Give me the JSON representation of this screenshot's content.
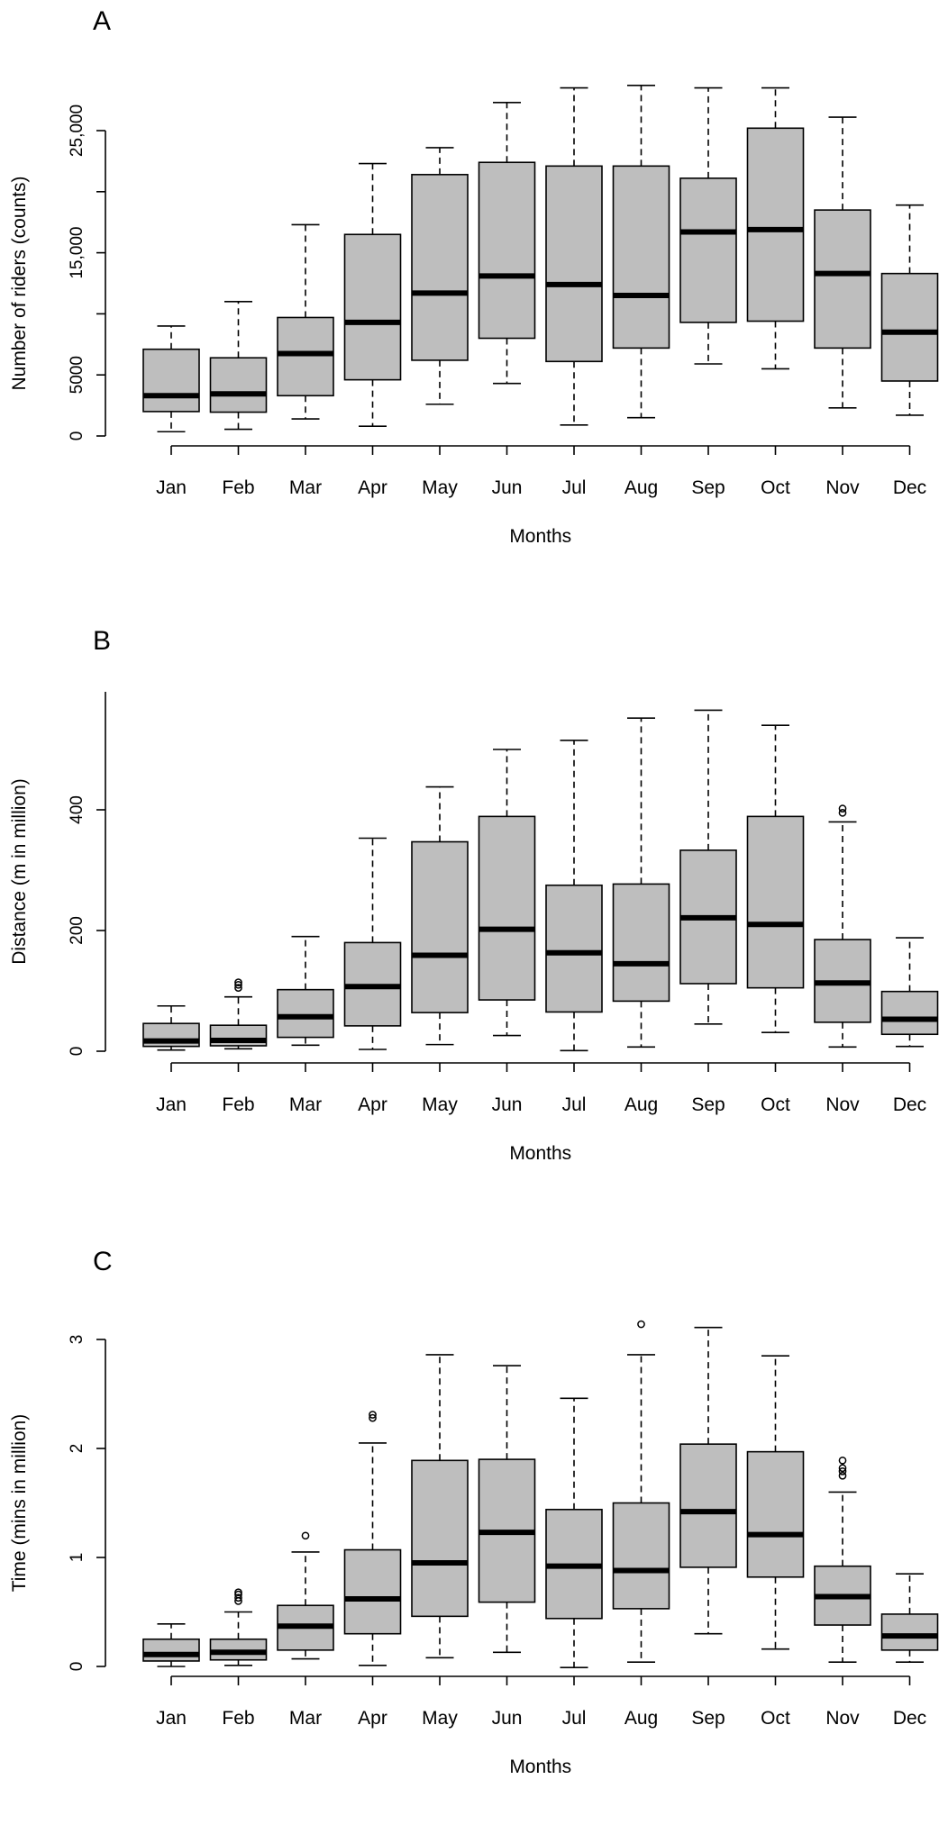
{
  "chart_data": [
    {
      "type": "boxplot",
      "panel_label": "A",
      "xlabel": "Months",
      "ylabel": "Number of riders (counts)",
      "categories": [
        "Jan",
        "Feb",
        "Mar",
        "Apr",
        "May",
        "Jun",
        "Jul",
        "Aug",
        "Sep",
        "Oct",
        "Nov",
        "Dec"
      ],
      "ylim": [
        0,
        29000
      ],
      "yticks": [
        0,
        5000,
        15000,
        25000
      ],
      "ytick_labels": [
        "0",
        "5000",
        "15,000",
        "25,000"
      ],
      "minor_yticks": [
        10000,
        20000
      ],
      "boxes": [
        {
          "min": 350,
          "q1": 2000,
          "median": 3300,
          "q3": 7100,
          "max": 9000,
          "outliers": []
        },
        {
          "min": 550,
          "q1": 1950,
          "median": 3450,
          "q3": 6400,
          "max": 11000,
          "outliers": []
        },
        {
          "min": 1400,
          "q1": 3300,
          "median": 6750,
          "q3": 9700,
          "max": 17300,
          "outliers": []
        },
        {
          "min": 800,
          "q1": 4600,
          "median": 9300,
          "q3": 16500,
          "max": 22300,
          "outliers": []
        },
        {
          "min": 2600,
          "q1": 6200,
          "median": 11700,
          "q3": 21400,
          "max": 23600,
          "outliers": []
        },
        {
          "min": 4300,
          "q1": 8000,
          "median": 13100,
          "q3": 22400,
          "max": 27300,
          "outliers": []
        },
        {
          "min": 900,
          "q1": 6100,
          "median": 12400,
          "q3": 22100,
          "max": 28500,
          "outliers": []
        },
        {
          "min": 1500,
          "q1": 7200,
          "median": 11500,
          "q3": 22100,
          "max": 28700,
          "outliers": []
        },
        {
          "min": 5900,
          "q1": 9300,
          "median": 16700,
          "q3": 21100,
          "max": 28500,
          "outliers": []
        },
        {
          "min": 5500,
          "q1": 9400,
          "median": 16900,
          "q3": 25200,
          "max": 28500,
          "outliers": []
        },
        {
          "min": 2300,
          "q1": 7200,
          "median": 13300,
          "q3": 18500,
          "max": 26100,
          "outliers": []
        },
        {
          "min": 1700,
          "q1": 4500,
          "median": 8500,
          "q3": 13300,
          "max": 18900,
          "outliers": []
        }
      ]
    },
    {
      "type": "boxplot",
      "panel_label": "B",
      "xlabel": "Months",
      "ylabel": "Distance (m in million)",
      "categories": [
        "Jan",
        "Feb",
        "Mar",
        "Apr",
        "May",
        "Jun",
        "Jul",
        "Aug",
        "Sep",
        "Oct",
        "Nov",
        "Dec"
      ],
      "ylim": [
        0,
        590
      ],
      "yticks": [
        0,
        200,
        400
      ],
      "ytick_labels": [
        "0",
        "200",
        "400"
      ],
      "minor_yticks": [],
      "boxes": [
        {
          "min": 2,
          "q1": 8,
          "median": 17,
          "q3": 46,
          "max": 75,
          "outliers": []
        },
        {
          "min": 4,
          "q1": 9,
          "median": 18,
          "q3": 43,
          "max": 90,
          "outliers": [
            105,
            110,
            114
          ]
        },
        {
          "min": 10,
          "q1": 23,
          "median": 57,
          "q3": 102,
          "max": 190,
          "outliers": []
        },
        {
          "min": 3,
          "q1": 42,
          "median": 107,
          "q3": 180,
          "max": 353,
          "outliers": []
        },
        {
          "min": 11,
          "q1": 64,
          "median": 159,
          "q3": 347,
          "max": 438,
          "outliers": []
        },
        {
          "min": 26,
          "q1": 85,
          "median": 202,
          "q3": 389,
          "max": 500,
          "outliers": []
        },
        {
          "min": 1,
          "q1": 65,
          "median": 163,
          "q3": 275,
          "max": 515,
          "outliers": []
        },
        {
          "min": 7,
          "q1": 83,
          "median": 145,
          "q3": 277,
          "max": 552,
          "outliers": []
        },
        {
          "min": 45,
          "q1": 112,
          "median": 221,
          "q3": 333,
          "max": 565,
          "outliers": []
        },
        {
          "min": 31,
          "q1": 105,
          "median": 210,
          "q3": 389,
          "max": 540,
          "outliers": []
        },
        {
          "min": 7,
          "q1": 48,
          "median": 113,
          "q3": 185,
          "max": 380,
          "outliers": [
            395,
            402
          ]
        },
        {
          "min": 8,
          "q1": 28,
          "median": 53,
          "q3": 99,
          "max": 188,
          "outliers": []
        }
      ]
    },
    {
      "type": "boxplot",
      "panel_label": "C",
      "xlabel": "Months",
      "ylabel": "Time (mins in million)",
      "categories": [
        "Jan",
        "Feb",
        "Mar",
        "Apr",
        "May",
        "Jun",
        "Jul",
        "Aug",
        "Sep",
        "Oct",
        "Nov",
        "Dec"
      ],
      "ylim": [
        0,
        3.2
      ],
      "yticks": [
        0,
        1,
        2,
        3
      ],
      "ytick_labels": [
        "0",
        "1",
        "2",
        "3"
      ],
      "minor_yticks": [],
      "boxes": [
        {
          "min": 0.0,
          "q1": 0.05,
          "median": 0.11,
          "q3": 0.25,
          "max": 0.39,
          "outliers": []
        },
        {
          "min": 0.01,
          "q1": 0.06,
          "median": 0.13,
          "q3": 0.25,
          "max": 0.5,
          "outliers": [
            0.6,
            0.63,
            0.66,
            0.68
          ]
        },
        {
          "min": 0.07,
          "q1": 0.15,
          "median": 0.37,
          "q3": 0.56,
          "max": 1.05,
          "outliers": [
            1.2
          ]
        },
        {
          "min": 0.01,
          "q1": 0.3,
          "median": 0.62,
          "q3": 1.07,
          "max": 2.05,
          "outliers": [
            2.28,
            2.31
          ]
        },
        {
          "min": 0.08,
          "q1": 0.46,
          "median": 0.95,
          "q3": 1.89,
          "max": 2.86,
          "outliers": []
        },
        {
          "min": 0.13,
          "q1": 0.59,
          "median": 1.23,
          "q3": 1.9,
          "max": 2.76,
          "outliers": []
        },
        {
          "min": -0.01,
          "q1": 0.44,
          "median": 0.92,
          "q3": 1.44,
          "max": 2.46,
          "outliers": []
        },
        {
          "min": 0.04,
          "q1": 0.53,
          "median": 0.88,
          "q3": 1.5,
          "max": 2.86,
          "outliers": [
            3.14
          ]
        },
        {
          "min": 0.3,
          "q1": 0.91,
          "median": 1.42,
          "q3": 2.04,
          "max": 3.11,
          "outliers": []
        },
        {
          "min": 0.16,
          "q1": 0.82,
          "median": 1.21,
          "q3": 1.97,
          "max": 2.85,
          "outliers": []
        },
        {
          "min": 0.04,
          "q1": 0.38,
          "median": 0.64,
          "q3": 0.92,
          "max": 1.6,
          "outliers": [
            1.75,
            1.79,
            1.82,
            1.89
          ]
        },
        {
          "min": 0.04,
          "q1": 0.15,
          "median": 0.28,
          "q3": 0.48,
          "max": 0.85,
          "outliers": []
        }
      ]
    }
  ]
}
